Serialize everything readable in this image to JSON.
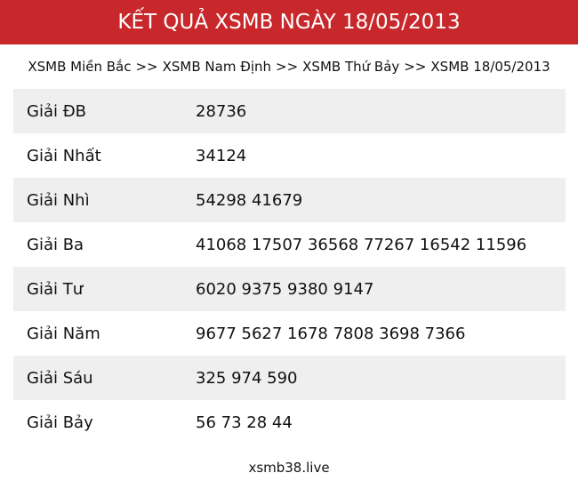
{
  "header": {
    "title": "KẾT QUẢ XSMB NGÀY 18/05/2013"
  },
  "breadcrumb": [
    {
      "label": "XSMB Miền Bắc"
    },
    {
      "sep": ">>"
    },
    {
      "label": "XSMB Nam Định"
    },
    {
      "sep": ">>"
    },
    {
      "label": "XSMB Thứ Bảy"
    },
    {
      "sep": ">>"
    },
    {
      "label": "XSMB 18/05/2013"
    }
  ],
  "results": [
    {
      "label": "Giải ĐB",
      "value": "28736"
    },
    {
      "label": "Giải Nhất",
      "value": "34124"
    },
    {
      "label": "Giải Nhì",
      "value": "54298 41679"
    },
    {
      "label": "Giải Ba",
      "value": "41068 17507 36568 77267 16542 11596"
    },
    {
      "label": "Giải Tư",
      "value": "6020 9375 9380 9147"
    },
    {
      "label": "Giải Năm",
      "value": "9677 5627 1678 7808 3698 7366"
    },
    {
      "label": "Giải Sáu",
      "value": "325 974 590"
    },
    {
      "label": "Giải Bảy",
      "value": "56 73 28 44"
    }
  ],
  "footer": {
    "site": "xsmb38.live"
  }
}
